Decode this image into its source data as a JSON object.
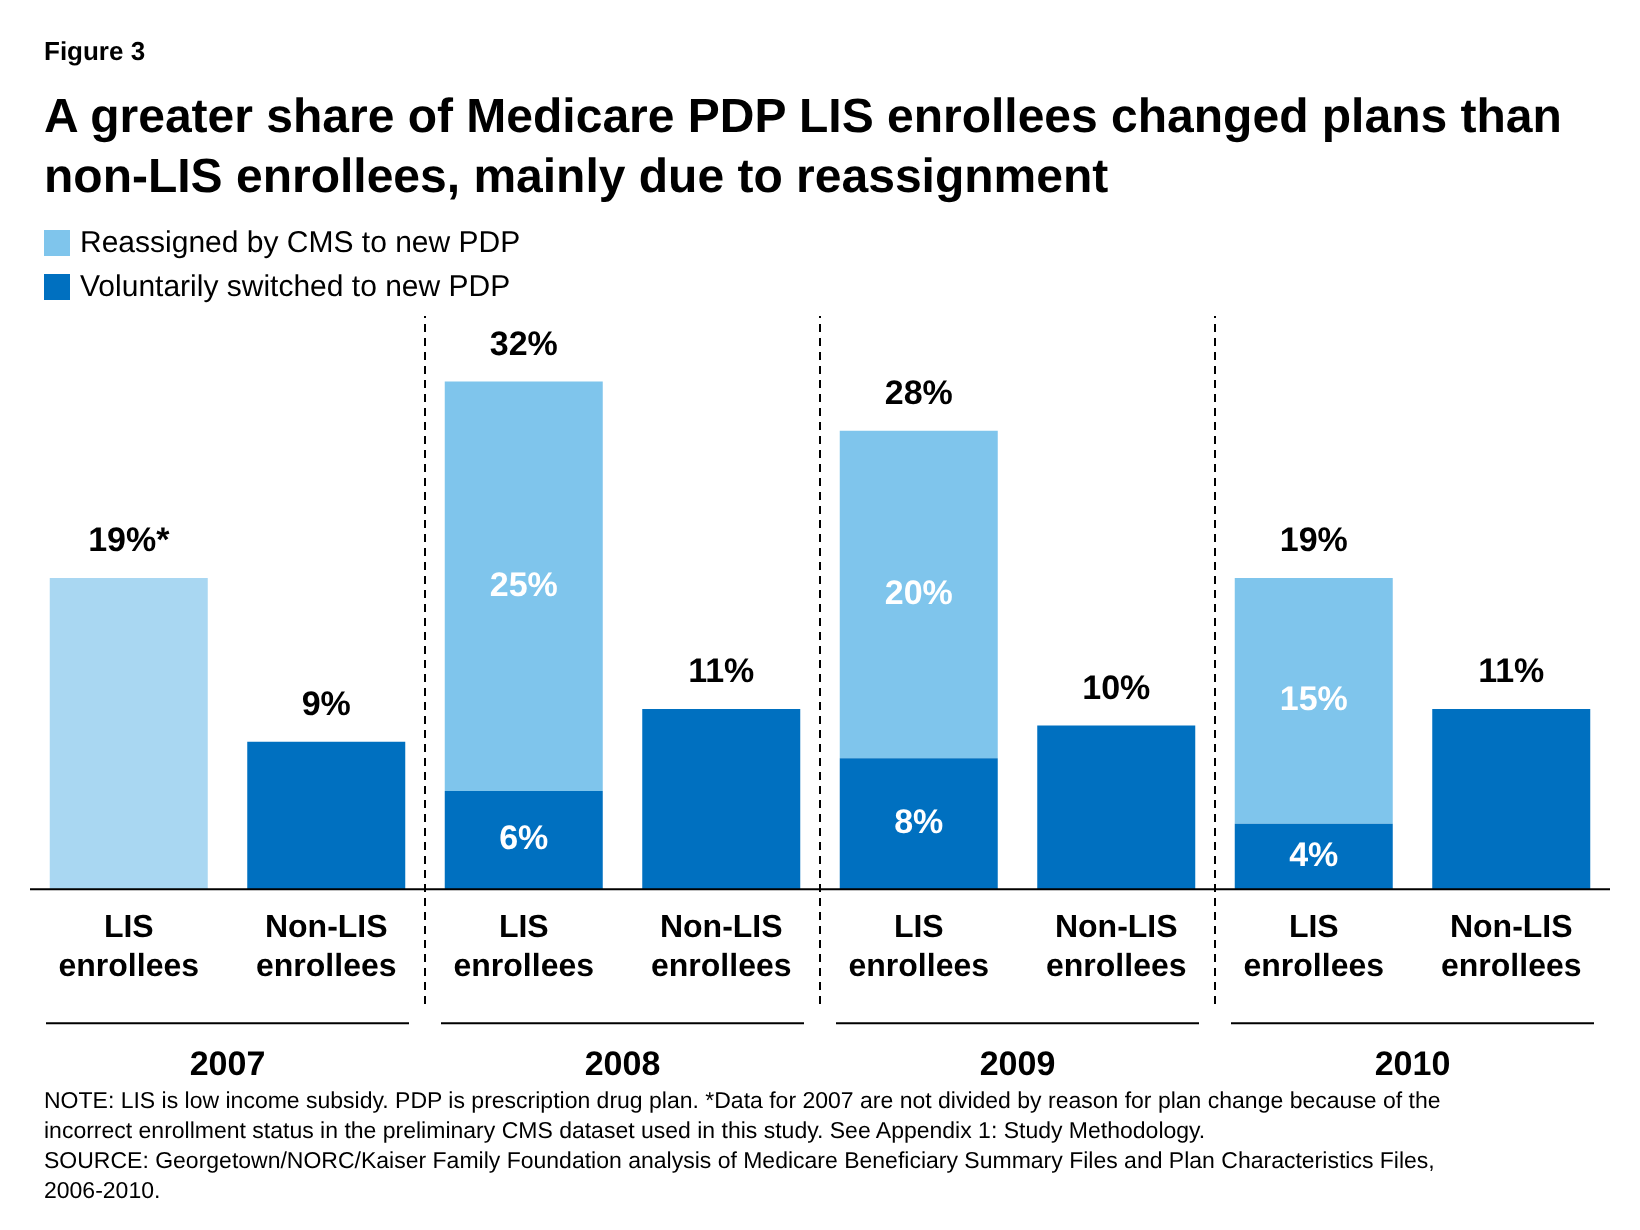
{
  "chart_data": {
    "type": "bar",
    "title": "A greater share of Medicare PDP LIS enrollees changed plans than non-LIS enrollees, mainly due to reassignment",
    "categories": [
      "LIS enrollees",
      "Non-LIS enrollees",
      "LIS enrollees",
      "Non-LIS enrollees",
      "LIS enrollees",
      "Non-LIS enrollees",
      "LIS enrollees",
      "Non-LIS enrollees"
    ],
    "series": [
      {
        "name": "Voluntarily switched to new PDP",
        "color": "#0070c0",
        "values": [
          null,
          9,
          6,
          11,
          8,
          10,
          4,
          11
        ],
        "value_labels": [
          null,
          null,
          "6%",
          null,
          "8%",
          null,
          "4%",
          null
        ]
      },
      {
        "name": "Reassigned by CMS to new PDP",
        "color": "#7fc5ec",
        "values": [
          null,
          null,
          25,
          null,
          20,
          null,
          15,
          null
        ],
        "value_labels": [
          null,
          null,
          "25%",
          null,
          "20%",
          null,
          "15%",
          null
        ]
      },
      {
        "color": "#a9d7f2",
        "values": [
          19,
          null,
          null,
          null,
          null,
          null,
          null,
          null
        ]
      }
    ],
    "stacked": true,
    "totals": [
      "19%*",
      "9%",
      "32%",
      "11%",
      "28%",
      "10%",
      "19%",
      "11%"
    ],
    "tick_labels": "x",
    "grid": false,
    "legend": "top left",
    "annotations": [
      "Figure 3",
      "2007",
      "2008",
      "2009",
      "2010",
      "NOTE: LIS is low income subsidy.  PDP is prescription drug plan. *Data for 2007 are not divided by reason for plan change because of the incorrect enrollment status in the preliminary CMS dataset used in this study.  See Appendix 1: Study Methodology.",
      "SOURCE: Georgetown/NORC/Kaiser Family Foundation analysis of Medicare Beneficiary Summary Files and Plan Characteristics Files, 2006-2010."
    ]
  }
}
